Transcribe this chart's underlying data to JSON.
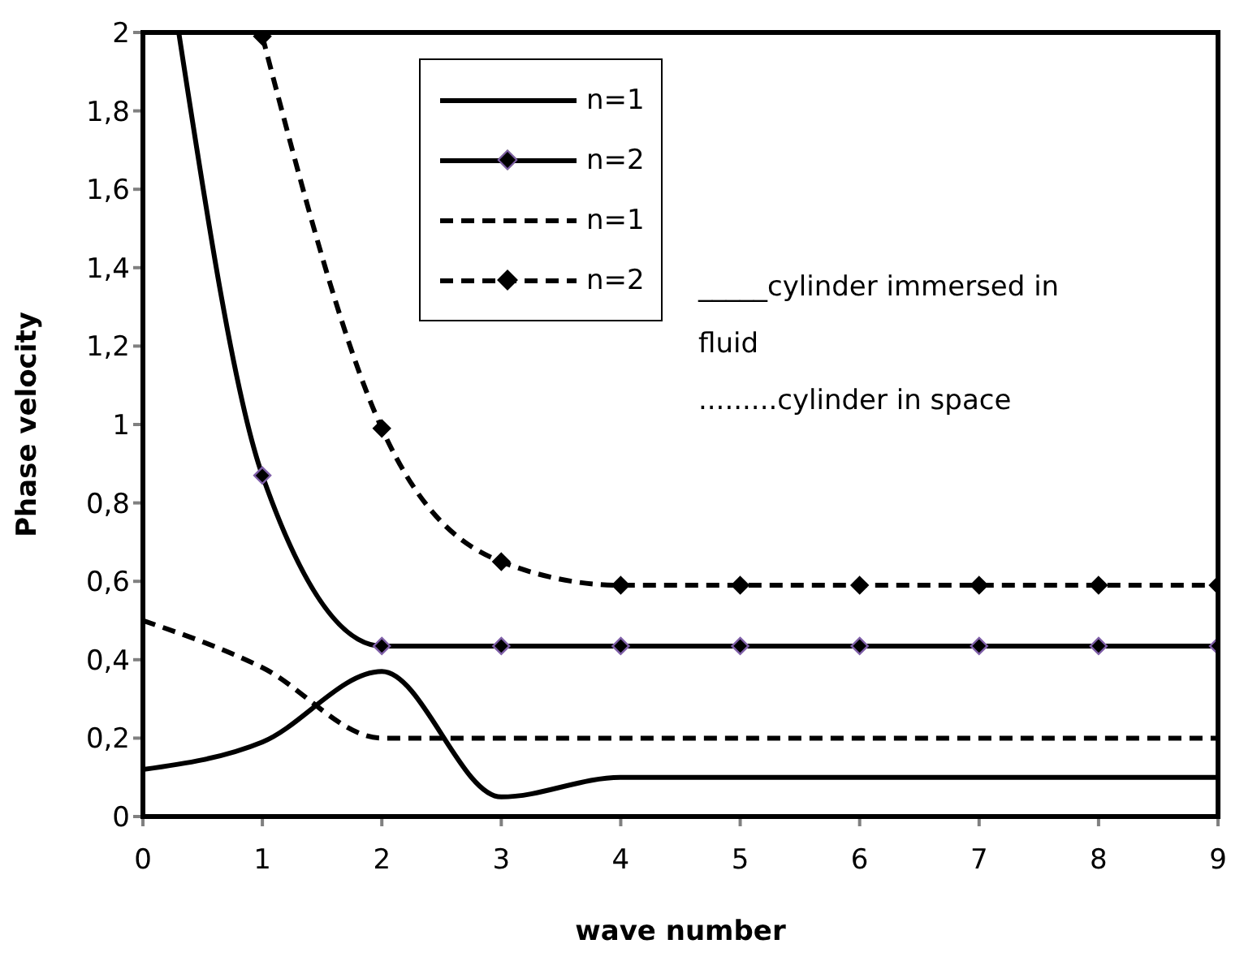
{
  "chart_data": {
    "type": "line",
    "xlabel": "wave number",
    "ylabel": "Phase velocity",
    "xlim": [
      0,
      9
    ],
    "xticks": [
      0,
      1,
      2,
      3,
      4,
      5,
      6,
      7,
      8,
      9
    ],
    "ylim": [
      0,
      2
    ],
    "yticks": [
      0,
      {
        "value": 0.2,
        "label": "0,2"
      },
      {
        "value": 0.4,
        "label": "0,4"
      },
      {
        "value": 0.6,
        "label": "0,6"
      },
      {
        "value": 0.8,
        "label": "0,8"
      },
      1,
      {
        "value": 1.2,
        "label": "1,2"
      },
      {
        "value": 1.4,
        "label": "1,4"
      },
      {
        "value": 1.6,
        "label": "1,6"
      },
      {
        "value": 1.8,
        "label": "1,8"
      },
      2
    ],
    "legend": "top",
    "series": [
      {
        "name": "n=1",
        "color": "#000000",
        "line_style": "solid",
        "marker": "none",
        "x": [
          0,
          1,
          2,
          3,
          4,
          5,
          6,
          7,
          8,
          9
        ],
        "values": [
          0.12,
          0.19,
          0.37,
          0.05,
          0.1,
          0.1,
          0.1,
          0.1,
          0.1,
          0.1
        ]
      },
      {
        "name": "n=2",
        "color": "#000000",
        "line_style": "solid",
        "marker": "diamond",
        "x": [
          0.3,
          1,
          2,
          3,
          4,
          5,
          6,
          7,
          8,
          9
        ],
        "values": [
          2,
          0.87,
          0.435,
          0.435,
          0.435,
          0.435,
          0.435,
          0.435,
          0.435,
          0.435
        ]
      },
      {
        "name": "n=1",
        "color": "#000000",
        "line_style": "dashed",
        "marker": "none",
        "x": [
          0,
          1,
          2,
          3,
          4,
          5,
          6,
          7,
          8,
          9
        ],
        "values": [
          0.5,
          0.38,
          0.2,
          0.2,
          0.2,
          0.2,
          0.2,
          0.2,
          0.2,
          0.2
        ]
      },
      {
        "name": "n=2",
        "color": "#000000",
        "line_style": "dashed",
        "marker": "diamond",
        "x": [
          1,
          2,
          3,
          4,
          5,
          6,
          7,
          8,
          9
        ],
        "values": [
          1.99,
          0.99,
          0.65,
          0.59,
          0.59,
          0.59,
          0.59,
          0.59,
          0.59
        ]
      }
    ],
    "annotations": [
      "_____cylinder immersed in fluid",
      ".........cylinder in space"
    ]
  }
}
